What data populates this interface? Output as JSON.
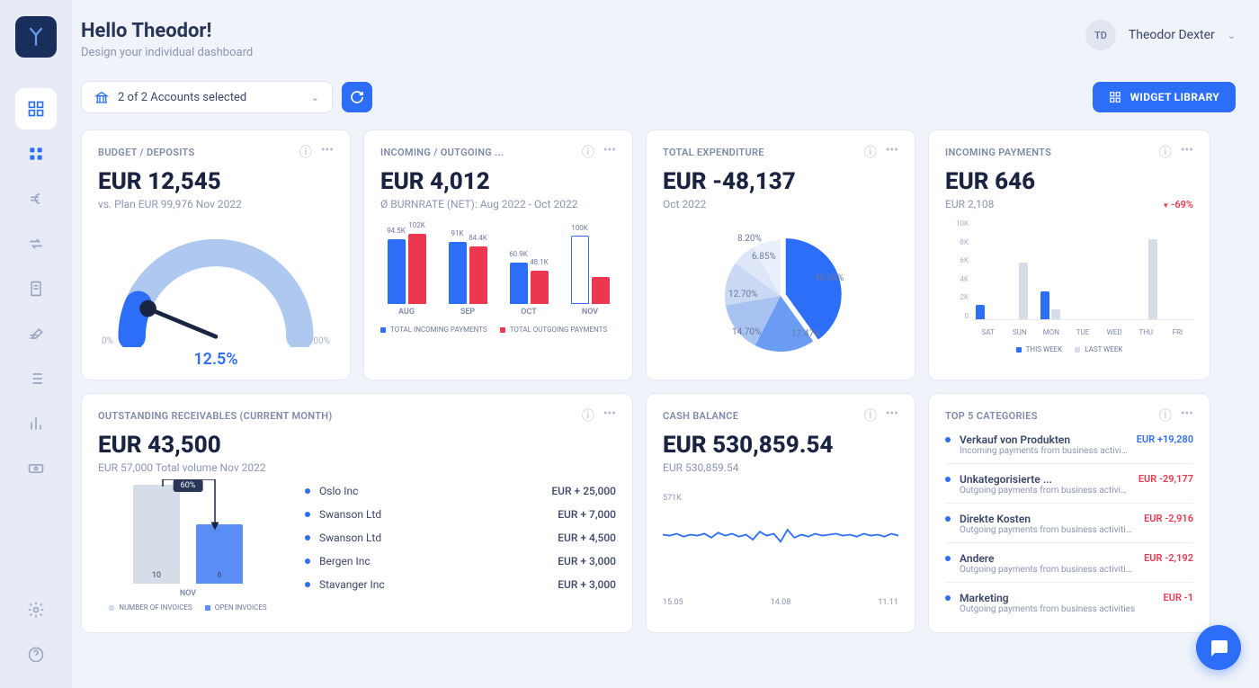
{
  "user": {
    "greeting": "Hello Theodor!",
    "subtitle": "Design your individual dashboard",
    "initials": "TD",
    "name": "Theodor Dexter"
  },
  "toolbar": {
    "accounts_label": "2 of 2  Accounts selected",
    "widget_library": "WIDGET LIBRARY"
  },
  "colors": {
    "primary": "#2c6ef7",
    "secondary": "#ec384f",
    "light_blue": "#afc8f0",
    "pale_blue": "#d3e0f7",
    "gray_bar": "#d6dde9",
    "text_muted": "#8a95b2",
    "positive": "#2c6ef7",
    "negative": "#ec384f"
  },
  "budget": {
    "title": "BUDGET / DEPOSITS",
    "value": "EUR 12,545",
    "sub": "vs. Plan EUR 99,976 Nov 2022",
    "percent": 12.5,
    "percent_label": "12.5%",
    "labels": {
      "min": "0%",
      "max": "100%"
    }
  },
  "burnrate": {
    "title": "INCOMING / OUTGOING ...",
    "value": "EUR 4,012",
    "sub": "Ø BURNRATE (NET): Aug 2022 - Oct 2022",
    "months": [
      "AUG",
      "SEP",
      "OCT",
      "NOV"
    ],
    "incoming": [
      94.5,
      91.0,
      60.9,
      100.0
    ],
    "outgoing": [
      102.0,
      84.4,
      48.1,
      40.0
    ],
    "incoming_labels": [
      "94.5K",
      "91K",
      "60.9K",
      "100K"
    ],
    "outgoing_labels": [
      "102K",
      "84.4K",
      "48.1K",
      ""
    ],
    "nov_outline": true,
    "ymax": 105,
    "legend_in": "TOTAL INCOMING PAYMENTS",
    "legend_out": "TOTAL OUTGOING PAYMENTS"
  },
  "expenditure": {
    "title": "TOTAL EXPENDITURE",
    "value": "EUR -48,137",
    "sub": "Oct 2022",
    "slices": [
      {
        "pct": 40.08,
        "label": "40.08%",
        "color": "#2c6ef7"
      },
      {
        "pct": 17.47,
        "label": "17.47%",
        "color": "#6a9cf4"
      },
      {
        "pct": 14.7,
        "label": "14.70%",
        "color": "#a8c3f2"
      },
      {
        "pct": 12.7,
        "label": "12.70%",
        "color": "#c9d9f4"
      },
      {
        "pct": 6.85,
        "label": "6.85%",
        "color": "#dde7f8"
      },
      {
        "pct": 8.2,
        "label": "8.20%",
        "color": "#eaf0fb"
      }
    ]
  },
  "incoming_payments": {
    "title": "INCOMING PAYMENTS",
    "value": "EUR 646",
    "sub": "EUR 2,108",
    "delta": "-69%",
    "delta_color": "#ec384f",
    "ymax": 10,
    "yticks": [
      "10K",
      "8K",
      "6K",
      "4K",
      "2K",
      "0"
    ],
    "days": [
      "SAT",
      "SUN",
      "MON",
      "TUE",
      "WED",
      "THU",
      "FRI"
    ],
    "this_week": [
      1.4,
      0,
      2.8,
      0,
      0,
      0,
      0
    ],
    "last_week": [
      0,
      5.7,
      1.0,
      0,
      0,
      8.0,
      0
    ],
    "legend_this": "THIS WEEK",
    "legend_last": "LAST WEEK"
  },
  "receivables": {
    "title": "OUTSTANDING RECEIVABLES (CURRENT MONTH)",
    "value": "EUR 43,500",
    "sub": "EUR 57,000 Total volume  Nov 2022",
    "month": "NOV",
    "num_invoices": 10,
    "open_invoices": 6,
    "pct_badge": "60%",
    "bar1_color": "#d6dde9",
    "bar2_color": "#5b8ef5",
    "legend_num": "NUMBER OF INVOICES",
    "legend_open": "OPEN INVOICES",
    "items": [
      {
        "name": "Oslo Inc",
        "amount": "EUR + 25,000"
      },
      {
        "name": "Swanson Ltd",
        "amount": "EUR + 7,000"
      },
      {
        "name": "Swanson Ltd",
        "amount": "EUR + 4,500"
      },
      {
        "name": "Bergen Inc",
        "amount": "EUR + 3,000"
      },
      {
        "name": "Stavanger Inc",
        "amount": "EUR + 3,000"
      }
    ]
  },
  "cash": {
    "title": "CASH BALANCE",
    "value": "EUR 530,859.54",
    "sub": "EUR 530,859.54",
    "y_label": "571K",
    "dates": [
      "15.05",
      "14.08",
      "11.11"
    ],
    "spark_color": "#2c6ef7",
    "spark_points": [
      0.55,
      0.54,
      0.56,
      0.53,
      0.55,
      0.54,
      0.56,
      0.52,
      0.57,
      0.54,
      0.56,
      0.53,
      0.55,
      0.5,
      0.58,
      0.54,
      0.56,
      0.48,
      0.6,
      0.52,
      0.55,
      0.53,
      0.56,
      0.54,
      0.55,
      0.56,
      0.54,
      0.55,
      0.53,
      0.56,
      0.54,
      0.55,
      0.53,
      0.56,
      0.54
    ]
  },
  "categories": {
    "title": "TOP 5 CATEGORIES",
    "items": [
      {
        "name": "Verkauf von Produkten",
        "sub": "Incoming payments from business activities",
        "amount": "EUR +19,280",
        "color": "#2c6ef7"
      },
      {
        "name": "Unkategorisierte ...",
        "sub": "Outgoing payments from business activities",
        "amount": "EUR -29,177",
        "color": "#ec384f"
      },
      {
        "name": "Direkte Kosten",
        "sub": "Outgoing payments from business activities",
        "amount": "EUR -2,916",
        "color": "#ec384f"
      },
      {
        "name": "Andere",
        "sub": "Outgoing payments from business activities",
        "amount": "EUR -2,192",
        "color": "#ec384f"
      },
      {
        "name": "Marketing",
        "sub": "Outgoing payments from business activities",
        "amount": "EUR -1",
        "color": "#ec384f"
      }
    ]
  },
  "layout": {
    "card_widths_row1": [
      300,
      300,
      300,
      314
    ],
    "card_widths_row2": [
      614,
      300,
      314
    ]
  }
}
